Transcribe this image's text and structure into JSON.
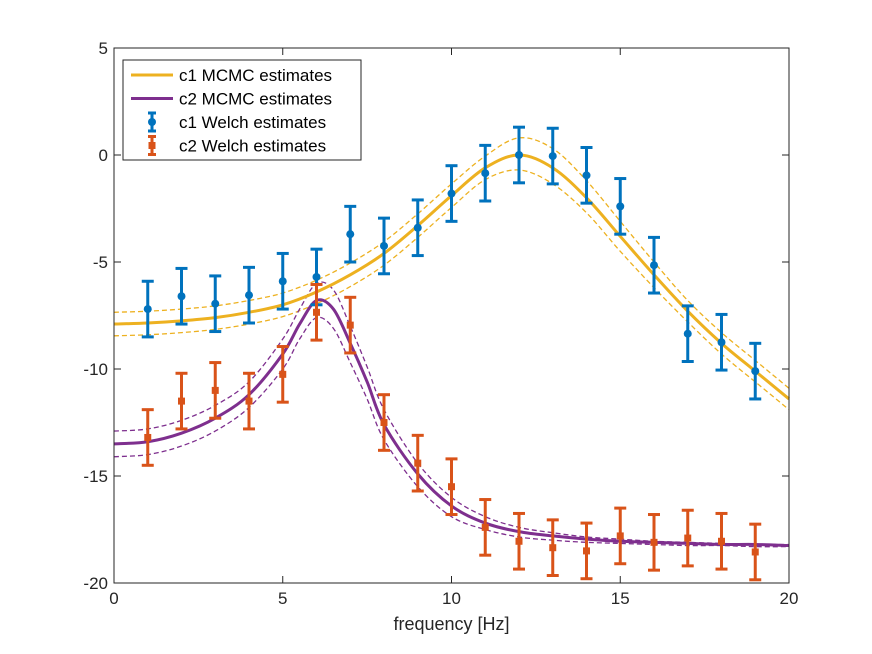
{
  "chart_data": {
    "type": "line",
    "title": "",
    "xlabel": "frequency [Hz]",
    "ylabel": "",
    "xlim": [
      0,
      20
    ],
    "ylim": [
      -20,
      5
    ],
    "xticks": [
      0,
      5,
      10,
      15,
      20
    ],
    "yticks": [
      -20,
      -15,
      -10,
      -5,
      0,
      5
    ],
    "grid": false,
    "legend_position": "top-left",
    "colors": {
      "c1_mcmc": "#EDB120",
      "c2_mcmc": "#7E2F8E",
      "c1_welch": "#0072BD",
      "c2_welch": "#D95319",
      "axis": "#262626"
    },
    "legend": [
      {
        "label": "c1 MCMC estimates",
        "series": "c1_mcmc",
        "kind": "line"
      },
      {
        "label": "c2 MCMC estimates",
        "series": "c2_mcmc",
        "kind": "line"
      },
      {
        "label": "c1 Welch estimates",
        "series": "c1_welch",
        "kind": "errorbar-circle"
      },
      {
        "label": "c2 Welch estimates",
        "series": "c2_welch",
        "kind": "errorbar-square"
      }
    ],
    "lines": [
      {
        "name": "c1 MCMC estimates",
        "key": "c1_mcmc",
        "x": [
          0,
          1,
          2,
          3,
          4,
          5,
          6,
          7,
          8,
          9,
          10,
          11,
          12,
          13,
          14,
          15,
          16,
          17,
          18,
          19,
          20
        ],
        "y": [
          -7.9,
          -7.85,
          -7.75,
          -7.6,
          -7.35,
          -7.0,
          -6.4,
          -5.6,
          -4.6,
          -3.3,
          -1.9,
          -0.6,
          0.0,
          -0.6,
          -2.0,
          -3.8,
          -5.6,
          -7.3,
          -8.8,
          -10.1,
          -11.4
        ],
        "upper": [
          -7.35,
          -7.3,
          -7.2,
          -7.05,
          -6.8,
          -6.45,
          -5.85,
          -5.05,
          -4.05,
          -2.75,
          -1.35,
          -0.05,
          0.8,
          0.3,
          -1.2,
          -3.1,
          -5.0,
          -6.8,
          -8.3,
          -9.6,
          -10.9
        ],
        "lower": [
          -8.45,
          -8.4,
          -8.3,
          -8.15,
          -7.9,
          -7.55,
          -6.95,
          -6.15,
          -5.15,
          -3.85,
          -2.45,
          -1.15,
          -0.7,
          -1.35,
          -2.7,
          -4.5,
          -6.2,
          -7.8,
          -9.3,
          -10.6,
          -11.9
        ]
      },
      {
        "name": "c2 MCMC estimates",
        "key": "c2_mcmc",
        "x": [
          0,
          1,
          2,
          3,
          4,
          5,
          5.5,
          6,
          6.5,
          7,
          7.5,
          8,
          9,
          10,
          11,
          12,
          13,
          14,
          15,
          16,
          17,
          18,
          19,
          20
        ],
        "y": [
          -13.5,
          -13.4,
          -13.0,
          -12.3,
          -11.2,
          -9.3,
          -7.9,
          -6.8,
          -7.2,
          -8.8,
          -10.6,
          -12.6,
          -14.9,
          -16.4,
          -17.2,
          -17.6,
          -17.8,
          -17.95,
          -18.05,
          -18.1,
          -18.15,
          -18.2,
          -18.2,
          -18.25
        ],
        "upper": [
          -12.9,
          -12.8,
          -12.4,
          -11.7,
          -10.6,
          -8.6,
          -7.2,
          -6.0,
          -6.3,
          -8.0,
          -9.9,
          -11.9,
          -14.4,
          -16.0,
          -16.9,
          -17.4,
          -17.65,
          -17.85,
          -17.95,
          -18.05,
          -18.1,
          -18.15,
          -18.2,
          -18.2
        ],
        "lower": [
          -14.1,
          -14.0,
          -13.6,
          -12.9,
          -11.8,
          -10.0,
          -8.6,
          -7.6,
          -8.1,
          -9.7,
          -11.4,
          -13.3,
          -15.5,
          -16.9,
          -17.5,
          -17.85,
          -18.0,
          -18.1,
          -18.15,
          -18.2,
          -18.25,
          -18.25,
          -18.3,
          -18.3
        ]
      }
    ],
    "errorbars": [
      {
        "name": "c1 Welch estimates",
        "key": "c1_welch",
        "marker": "circle",
        "x": [
          1,
          2,
          3,
          4,
          5,
          6,
          7,
          8,
          9,
          10,
          11,
          12,
          13,
          14,
          15,
          16,
          17,
          18,
          19
        ],
        "y": [
          -7.2,
          -6.6,
          -6.95,
          -6.55,
          -5.9,
          -5.7,
          -3.7,
          -4.25,
          -3.4,
          -1.8,
          -0.85,
          0.0,
          -0.05,
          -0.95,
          -2.4,
          -5.15,
          -8.35,
          -8.75,
          -10.1
        ],
        "err": [
          1.3,
          1.3,
          1.3,
          1.3,
          1.3,
          1.3,
          1.3,
          1.3,
          1.3,
          1.3,
          1.3,
          1.3,
          1.3,
          1.3,
          1.3,
          1.3,
          1.3,
          1.3,
          1.3
        ]
      },
      {
        "name": "c2 Welch estimates",
        "key": "c2_welch",
        "marker": "square",
        "x": [
          1,
          2,
          3,
          4,
          5,
          6,
          7,
          8,
          9,
          10,
          11,
          12,
          13,
          14,
          15,
          16,
          17,
          18,
          19
        ],
        "y": [
          -13.2,
          -11.5,
          -11.0,
          -11.5,
          -10.25,
          -7.35,
          -7.95,
          -12.5,
          -14.4,
          -15.5,
          -17.4,
          -18.05,
          -18.35,
          -18.5,
          -17.8,
          -18.1,
          -17.9,
          -18.05,
          -18.55
        ],
        "err": [
          1.3,
          1.3,
          1.3,
          1.3,
          1.3,
          1.3,
          1.3,
          1.3,
          1.3,
          1.3,
          1.3,
          1.3,
          1.3,
          1.3,
          1.3,
          1.3,
          1.3,
          1.3,
          1.3
        ]
      }
    ]
  }
}
